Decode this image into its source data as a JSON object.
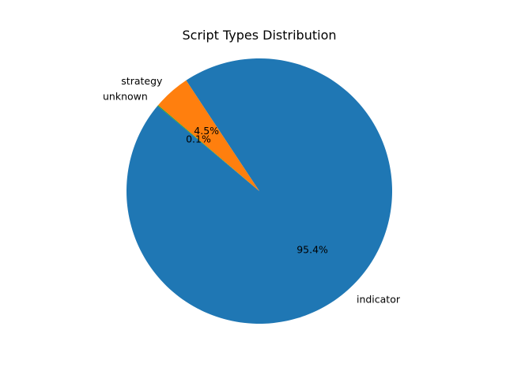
{
  "chart_data": {
    "type": "pie",
    "title": "Script Types Distribution",
    "start_angle_deg": 140,
    "direction": "counterclockwise",
    "slices": [
      {
        "label": "indicator",
        "value": 95.4,
        "pct_label": "95.4%",
        "color": "#1f77b4"
      },
      {
        "label": "strategy",
        "value": 4.5,
        "pct_label": "4.5%",
        "color": "#ff7f0e"
      },
      {
        "label": "unknown",
        "value": 0.1,
        "pct_label": "0.1%",
        "color": "#2ca02c"
      }
    ]
  }
}
